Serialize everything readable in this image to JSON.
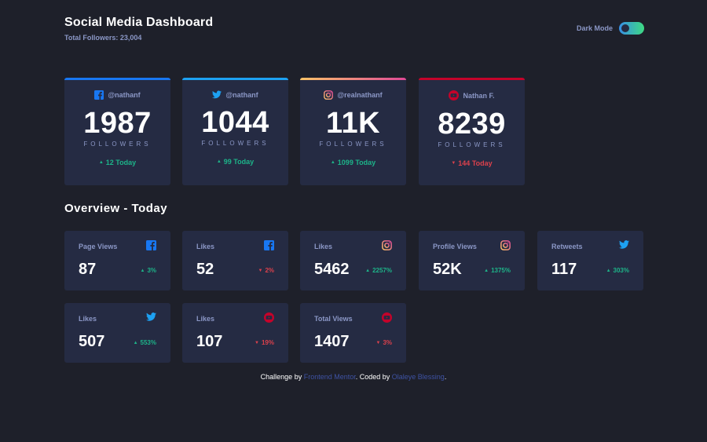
{
  "header": {
    "title": "Social Media Dashboard",
    "total_followers": "Total Followers: 23,004",
    "dark_mode_label": "Dark Mode"
  },
  "colors": {
    "facebook": "#1877f2",
    "twitter": "#1da1f2",
    "instagram_gradient": [
      "#fdc468",
      "#df4996"
    ],
    "youtube": "#c4032a",
    "up": "#1db489",
    "down": "#dc414c",
    "toggle_gradient": [
      "#378fe6",
      "#3eda82"
    ]
  },
  "cards": [
    {
      "network": "facebook",
      "icon": "facebook-icon",
      "handle": "@nathanf",
      "count": "1987",
      "label": "FOLLOWERS",
      "today": "12 Today",
      "trend": "up"
    },
    {
      "network": "twitter",
      "icon": "twitter-icon",
      "handle": "@nathanf",
      "count": "1044",
      "label": "FOLLOWERS",
      "today": "99 Today",
      "trend": "up"
    },
    {
      "network": "instagram",
      "icon": "instagram-icon",
      "handle": "@realnathanf",
      "count": "11K",
      "label": "FOLLOWERS",
      "today": "1099 Today",
      "trend": "up"
    },
    {
      "network": "youtube",
      "icon": "youtube-icon",
      "handle": "Nathan F.",
      "count": "8239",
      "label": "FOLLOWERS",
      "today": "144 Today",
      "trend": "down"
    }
  ],
  "overview": {
    "title": "Overview - Today",
    "items": [
      {
        "label": "Page Views",
        "icon": "facebook-icon",
        "value": "87",
        "pct": "3%",
        "trend": "up"
      },
      {
        "label": "Likes",
        "icon": "facebook-icon",
        "value": "52",
        "pct": "2%",
        "trend": "down"
      },
      {
        "label": "Likes",
        "icon": "instagram-icon",
        "value": "5462",
        "pct": "2257%",
        "trend": "up"
      },
      {
        "label": "Profile Views",
        "icon": "instagram-icon",
        "value": "52K",
        "pct": "1375%",
        "trend": "up"
      },
      {
        "label": "Retweets",
        "icon": "twitter-icon",
        "value": "117",
        "pct": "303%",
        "trend": "up"
      },
      {
        "label": "Likes",
        "icon": "twitter-icon",
        "value": "507",
        "pct": "553%",
        "trend": "up"
      },
      {
        "label": "Likes",
        "icon": "youtube-icon",
        "value": "107",
        "pct": "19%",
        "trend": "down"
      },
      {
        "label": "Total Views",
        "icon": "youtube-icon",
        "value": "1407",
        "pct": "3%",
        "trend": "down"
      }
    ]
  },
  "footer": {
    "prefix": "Challenge by ",
    "link1": "Frontend Mentor",
    "middle": ". Coded by ",
    "link2": "Olaleye Blessing",
    "suffix": "."
  }
}
